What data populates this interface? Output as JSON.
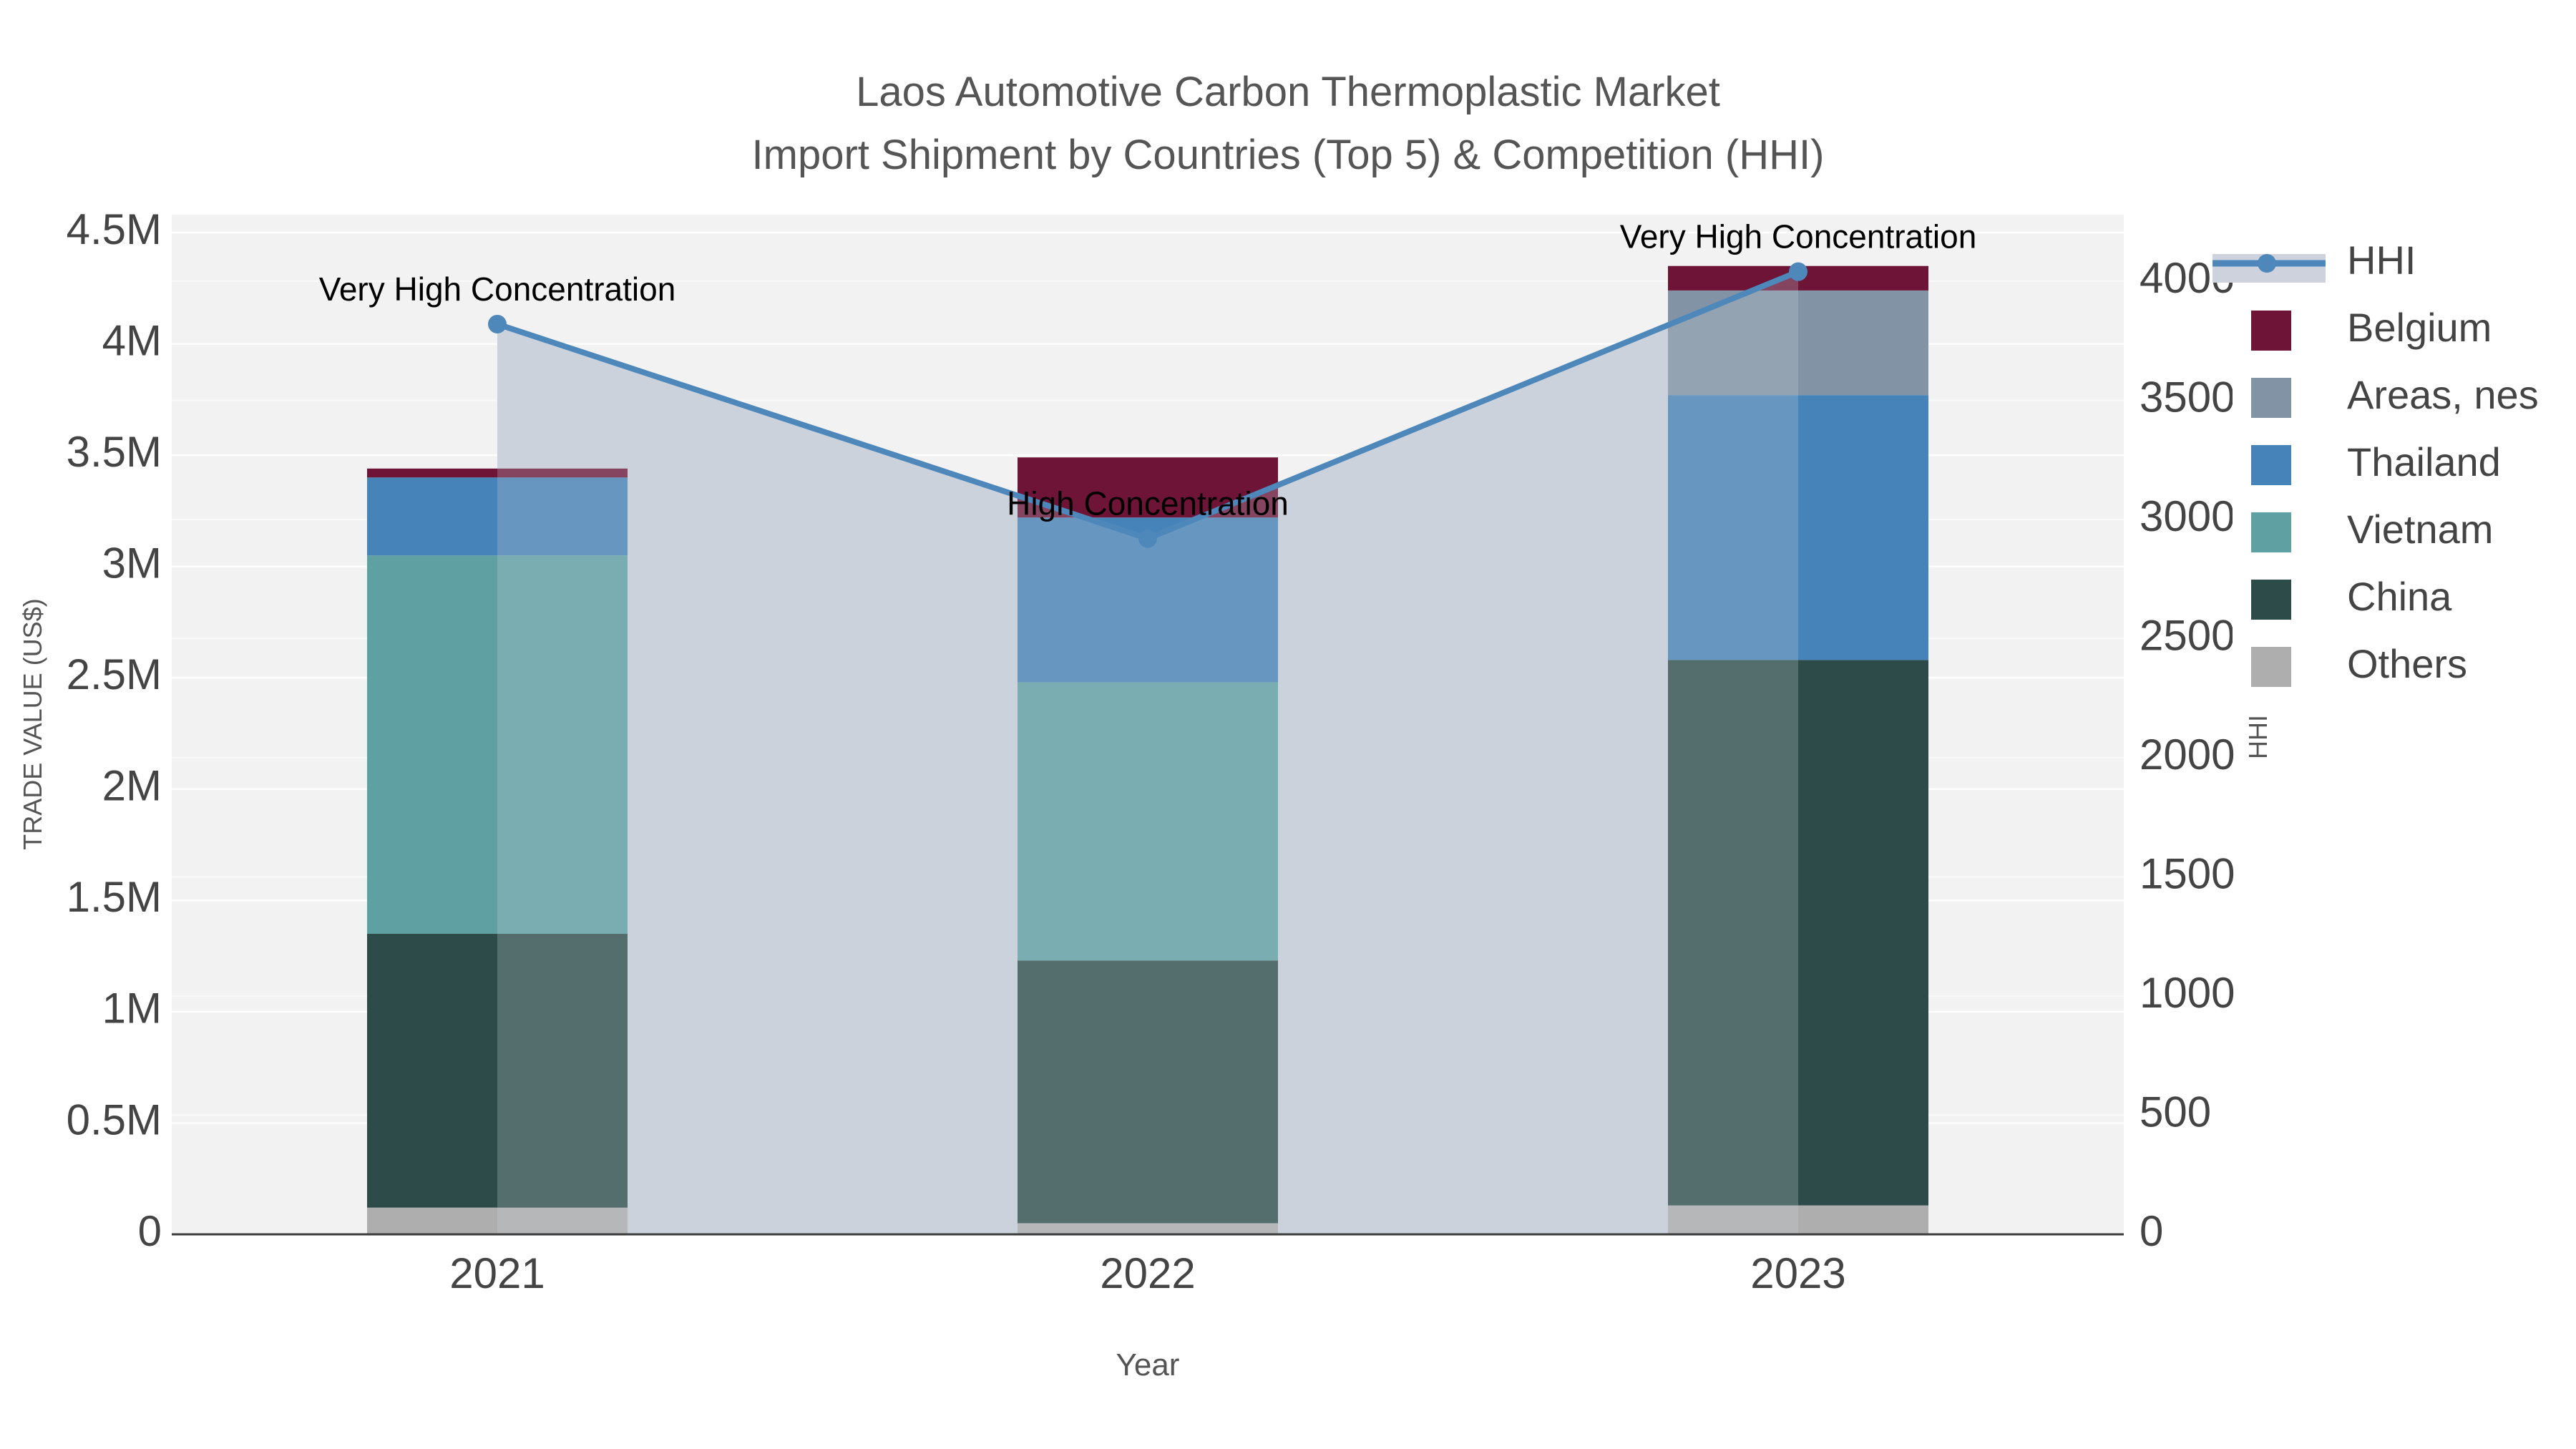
{
  "chart_data": {
    "type": "bar",
    "subtype": "stacked-bars-with-dual-axis-line",
    "title": "Laos Automotive Carbon Thermoplastic Market",
    "subtitle": "Import Shipment by Countries (Top 5) & Competition (HHI)",
    "xlabel": "Year",
    "ylabel_left": "TRADE VALUE (US$)",
    "ylabel_right": "HHI",
    "categories": [
      "2021",
      "2022",
      "2023"
    ],
    "series": [
      {
        "name": "Others",
        "color": "#aeaeae",
        "values_usd_m": [
          0.12,
          0.05,
          0.13
        ]
      },
      {
        "name": "China",
        "color": "#2d4c49",
        "values_usd_m": [
          1.23,
          1.18,
          2.45
        ]
      },
      {
        "name": "Vietnam",
        "color": "#5fa1a3",
        "values_usd_m": [
          1.7,
          1.25,
          0.0
        ]
      },
      {
        "name": "Thailand",
        "color": "#4683b8",
        "values_usd_m": [
          0.35,
          0.74,
          1.19
        ]
      },
      {
        "name": "Areas, nes",
        "color": "#8293a5",
        "values_usd_m": [
          0.0,
          0.0,
          0.47
        ]
      },
      {
        "name": "Belgium",
        "color": "#6e1537",
        "values_usd_m": [
          0.04,
          0.27,
          0.11
        ]
      }
    ],
    "bar_totals_usd_m": [
      3.44,
      3.49,
      4.35
    ],
    "hhi_line": {
      "name": "HHI",
      "color": "#4e88bb",
      "area_fill_color": "#cdd2dc",
      "values": [
        3820,
        2920,
        4040
      ]
    },
    "annotations": [
      {
        "category": "2021",
        "text": "Very High Concentration"
      },
      {
        "category": "2022",
        "text": "High Concentration"
      },
      {
        "category": "2023",
        "text": "Very High Concentration"
      }
    ],
    "y_left": {
      "ticks": [
        "0",
        "0.5M",
        "1M",
        "1.5M",
        "2M",
        "2.5M",
        "3M",
        "3.5M",
        "4M",
        "4.5M"
      ],
      "tick_values_m": [
        0,
        0.5,
        1,
        1.5,
        2,
        2.5,
        3,
        3.5,
        4,
        4.5
      ],
      "max_m": 4.5
    },
    "y_right": {
      "ticks": [
        "0",
        "500",
        "1000",
        "1500",
        "2000",
        "2500",
        "3000",
        "3500",
        "4000"
      ],
      "tick_values": [
        0,
        500,
        1000,
        1500,
        2000,
        2500,
        3000,
        3500,
        4000
      ],
      "max": 4000
    },
    "legend": {
      "position": "right",
      "entries": [
        "HHI",
        "Belgium",
        "Areas, nes",
        "Thailand",
        "Vietnam",
        "China",
        "Others"
      ]
    },
    "grid": true
  },
  "style": {
    "plot_bg": "#f2f2f2",
    "figure_bg": "#ffffff",
    "grid_major": "#ffffff",
    "grid_secondary": "#f9f9f9",
    "axis_line": "#3c3c3c",
    "tick_text": "#444444",
    "title_text": "#555555",
    "annotation_text": "#000000",
    "bar_overlay": "rgba(205,210,220,0.25)"
  }
}
